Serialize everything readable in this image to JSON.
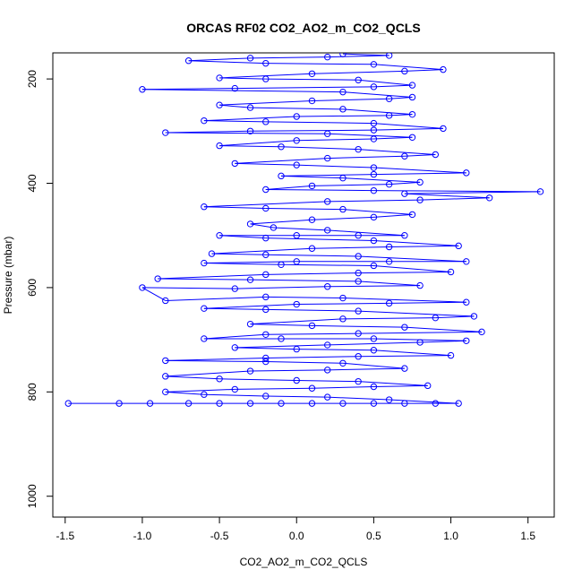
{
  "chart_data": {
    "type": "scatter",
    "title": "ORCAS RF02 CO2_AO2_m_CO2_QCLS",
    "xlabel": "CO2_AO2_m_CO2_QCLS",
    "ylabel": "Pressure (mbar)",
    "xlim": [
      -1.58,
      1.67
    ],
    "ylim": [
      1040,
      150
    ],
    "y_reversed": true,
    "x_ticks": [
      -1.5,
      -1.0,
      -0.5,
      0.0,
      0.5,
      1.0,
      1.5
    ],
    "x_tick_labels": [
      "-1.5",
      "-1.0",
      "-0.5",
      "0.0",
      "0.5",
      "1.0",
      "1.5"
    ],
    "y_ticks": [
      200,
      400,
      600,
      800,
      1000
    ],
    "y_tick_labels": [
      "200",
      "400",
      "600",
      "800",
      "1000"
    ],
    "grid": false,
    "series": [
      {
        "marker": "open-circle",
        "line": true,
        "points": [
          [
            -1.48,
            822
          ],
          [
            -1.15,
            822
          ],
          [
            -0.95,
            822
          ],
          [
            -0.7,
            822
          ],
          [
            -0.5,
            822
          ],
          [
            -0.3,
            822
          ],
          [
            -0.1,
            822
          ],
          [
            0.1,
            822
          ],
          [
            0.3,
            822
          ],
          [
            0.5,
            822
          ],
          [
            0.7,
            822
          ],
          [
            0.9,
            822
          ],
          [
            1.05,
            822
          ],
          [
            0.6,
            815
          ],
          [
            0.2,
            810
          ],
          [
            -0.2,
            808
          ],
          [
            -0.6,
            805
          ],
          [
            -0.85,
            800
          ],
          [
            -0.4,
            795
          ],
          [
            0.1,
            793
          ],
          [
            0.5,
            790
          ],
          [
            0.85,
            788
          ],
          [
            0.4,
            780
          ],
          [
            0.0,
            778
          ],
          [
            -0.5,
            775
          ],
          [
            -0.85,
            770
          ],
          [
            -0.3,
            760
          ],
          [
            0.2,
            758
          ],
          [
            0.7,
            755
          ],
          [
            0.3,
            745
          ],
          [
            -0.2,
            742
          ],
          [
            -0.85,
            740
          ],
          [
            -0.2,
            735
          ],
          [
            0.4,
            732
          ],
          [
            1.0,
            730
          ],
          [
            0.5,
            720
          ],
          [
            0.0,
            718
          ],
          [
            -0.4,
            715
          ],
          [
            0.2,
            710
          ],
          [
            0.8,
            705
          ],
          [
            1.1,
            702
          ],
          [
            0.5,
            698
          ],
          [
            -0.1,
            698
          ],
          [
            -0.6,
            698
          ],
          [
            -0.2,
            690
          ],
          [
            0.4,
            688
          ],
          [
            1.2,
            685
          ],
          [
            0.7,
            676
          ],
          [
            0.1,
            673
          ],
          [
            -0.3,
            670
          ],
          [
            0.3,
            660
          ],
          [
            0.9,
            658
          ],
          [
            1.15,
            655
          ],
          [
            0.4,
            645
          ],
          [
            -0.2,
            642
          ],
          [
            -0.6,
            640
          ],
          [
            0.0,
            632
          ],
          [
            0.6,
            630
          ],
          [
            1.1,
            628
          ],
          [
            0.3,
            620
          ],
          [
            -0.2,
            618
          ],
          [
            -0.85,
            625
          ],
          [
            -1.0,
            600
          ],
          [
            -0.4,
            602
          ],
          [
            0.2,
            598
          ],
          [
            0.8,
            596
          ],
          [
            0.4,
            588
          ],
          [
            -0.3,
            585
          ],
          [
            -0.9,
            583
          ],
          [
            -0.2,
            575
          ],
          [
            0.4,
            572
          ],
          [
            1.0,
            570
          ],
          [
            0.5,
            558
          ],
          [
            -0.1,
            556
          ],
          [
            -0.6,
            553
          ],
          [
            0.0,
            550
          ],
          [
            0.6,
            550
          ],
          [
            1.1,
            550
          ],
          [
            0.4,
            540
          ],
          [
            -0.2,
            537
          ],
          [
            -0.55,
            535
          ],
          [
            0.1,
            525
          ],
          [
            0.6,
            522
          ],
          [
            1.05,
            520
          ],
          [
            0.5,
            510
          ],
          [
            -0.2,
            505
          ],
          [
            -0.5,
            500
          ],
          [
            0.0,
            500
          ],
          [
            0.4,
            500
          ],
          [
            0.7,
            500
          ],
          [
            0.2,
            490
          ],
          [
            -0.15,
            485
          ],
          [
            -0.3,
            478
          ],
          [
            0.1,
            470
          ],
          [
            0.5,
            465
          ],
          [
            0.75,
            460
          ],
          [
            0.3,
            450
          ],
          [
            -0.2,
            448
          ],
          [
            -0.6,
            445
          ],
          [
            0.2,
            435
          ],
          [
            0.8,
            432
          ],
          [
            1.25,
            428
          ],
          [
            0.7,
            420
          ],
          [
            1.58,
            416
          ],
          [
            0.5,
            414
          ],
          [
            -0.2,
            412
          ],
          [
            0.1,
            405
          ],
          [
            0.6,
            402
          ],
          [
            0.8,
            398
          ],
          [
            0.3,
            390
          ],
          [
            -0.1,
            386
          ],
          [
            0.5,
            383
          ],
          [
            1.1,
            380
          ],
          [
            0.5,
            370
          ],
          [
            0.0,
            365
          ],
          [
            -0.4,
            362
          ],
          [
            0.2,
            352
          ],
          [
            0.7,
            348
          ],
          [
            0.9,
            345
          ],
          [
            0.4,
            335
          ],
          [
            -0.1,
            330
          ],
          [
            -0.5,
            328
          ],
          [
            0.0,
            318
          ],
          [
            0.5,
            315
          ],
          [
            0.75,
            312
          ],
          [
            0.2,
            305
          ],
          [
            -0.85,
            303
          ],
          [
            -0.3,
            300
          ],
          [
            0.5,
            298
          ],
          [
            0.95,
            295
          ],
          [
            0.5,
            285
          ],
          [
            -0.2,
            282
          ],
          [
            -0.6,
            280
          ],
          [
            0.0,
            272
          ],
          [
            0.6,
            270
          ],
          [
            0.75,
            268
          ],
          [
            0.3,
            258
          ],
          [
            -0.3,
            255
          ],
          [
            -0.5,
            250
          ],
          [
            0.1,
            242
          ],
          [
            0.6,
            238
          ],
          [
            0.75,
            235
          ],
          [
            0.3,
            225
          ],
          [
            -1.0,
            220
          ],
          [
            -0.4,
            218
          ],
          [
            0.5,
            215
          ],
          [
            0.75,
            212
          ],
          [
            0.4,
            202
          ],
          [
            -0.2,
            200
          ],
          [
            -0.5,
            198
          ],
          [
            0.1,
            190
          ],
          [
            0.7,
            185
          ],
          [
            0.95,
            182
          ],
          [
            0.5,
            172
          ],
          [
            -0.2,
            170
          ],
          [
            -0.7,
            165
          ],
          [
            -0.3,
            160
          ],
          [
            0.2,
            158
          ],
          [
            0.6,
            155
          ],
          [
            0.3,
            152
          ]
        ]
      }
    ]
  },
  "colors": {
    "series": "#0000ff",
    "axis": "#000000",
    "background": "#ffffff"
  }
}
